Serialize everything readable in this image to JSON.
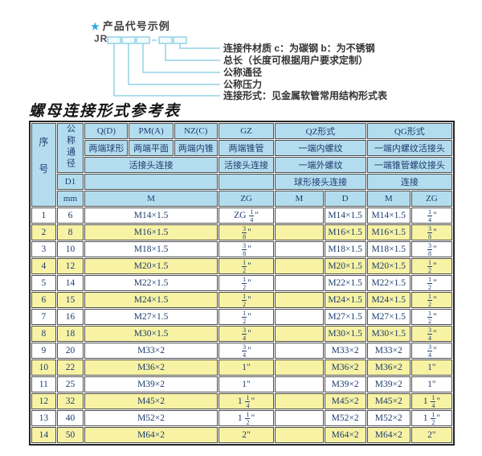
{
  "diagram": {
    "star": "★",
    "example_title": "产品代号示例",
    "code_prefix": "JR",
    "labels": [
      "连接件材质  c：为碳钢  b：为不锈钢",
      "总长（长度可根据用户要求定制）",
      "公称通径",
      "公称压力",
      "连接形式：见金属软管常用结构形式表"
    ]
  },
  "table_title": "螺母连接形式参考表",
  "table": {
    "header": {
      "seq": "序号",
      "diameter": "公称通径",
      "d1": "D1",
      "mm": "mm",
      "col_q": "Q(D)",
      "col_pm": "PM(A)",
      "col_nz": "NZ(C)",
      "col_gz": "GZ",
      "col_qz": "QZ形式",
      "col_qg": "QG形式",
      "q_desc": "两端球形",
      "pm_desc": "两端平面",
      "nz_desc": "两端内锥",
      "gz_desc": "两端锥管",
      "qz_desc1": "一端内螺纹",
      "qg_desc1": "一端内螺纹活接头",
      "union_conn": "活接头连接",
      "gz_conn": "活接头连接",
      "qz_desc2": "一端外螺纹",
      "qg_desc2": "一端锥管螺纹接头",
      "qz_conn": "球形接头连接",
      "qg_conn": "连接",
      "sub_m": "M",
      "sub_zg": "ZG",
      "sub_qz_m": "M",
      "sub_qz_d": "D",
      "sub_qg_m": "M",
      "sub_qg_zg": "ZG"
    },
    "rows": [
      {
        "seq": "1",
        "dn": "6",
        "m": "M14×1.5",
        "gz": "ZG 1/4\"",
        "qz_m": "",
        "qz_d": "M14×1.5",
        "qg_m": "M14×1.5",
        "qg_zg": "1/4\""
      },
      {
        "seq": "2",
        "dn": "8",
        "m": "M16×1.5",
        "gz": "3/8\"",
        "qz_m": "",
        "qz_d": "M16×1.5",
        "qg_m": "M16×1.5",
        "qg_zg": "3/8\""
      },
      {
        "seq": "3",
        "dn": "10",
        "m": "M18×1.5",
        "gz": "3/8\"",
        "qz_m": "",
        "qz_d": "M18×1.5",
        "qg_m": "M18×1.5",
        "qg_zg": "3/8\""
      },
      {
        "seq": "4",
        "dn": "12",
        "m": "M20×1.5",
        "gz": "1/2\"",
        "qz_m": "",
        "qz_d": "M20×1.5",
        "qg_m": "M20×1.5",
        "qg_zg": "1/2\""
      },
      {
        "seq": "5",
        "dn": "14",
        "m": "M22×1.5",
        "gz": "1/2\"",
        "qz_m": "",
        "qz_d": "M22×1.5",
        "qg_m": "M22×1.5",
        "qg_zg": "1/2\""
      },
      {
        "seq": "6",
        "dn": "15",
        "m": "M24×1.5",
        "gz": "1/2\"",
        "qz_m": "",
        "qz_d": "M24×1.5",
        "qg_m": "M24×1.5",
        "qg_zg": "1/2\""
      },
      {
        "seq": "7",
        "dn": "16",
        "m": "M27×1.5",
        "gz": "1/2\"",
        "qz_m": "",
        "qz_d": "M27×1.5",
        "qg_m": "M27×1.5",
        "qg_zg": "1/2\""
      },
      {
        "seq": "8",
        "dn": "18",
        "m": "M30×1.5",
        "gz": "3/4\"",
        "qz_m": "",
        "qz_d": "M30×1.5",
        "qg_m": "M30×1.5",
        "qg_zg": "3/4\""
      },
      {
        "seq": "9",
        "dn": "20",
        "m": "M33×2",
        "gz": "3/4\"",
        "qz_m": "",
        "qz_d": "M33×2",
        "qg_m": "M33×2",
        "qg_zg": "3/4\""
      },
      {
        "seq": "10",
        "dn": "22",
        "m": "M36×2",
        "gz": "1\"",
        "qz_m": "",
        "qz_d": "M36×2",
        "qg_m": "M36×2",
        "qg_zg": "1\""
      },
      {
        "seq": "11",
        "dn": "25",
        "m": "M39×2",
        "gz": "1\"",
        "qz_m": "",
        "qz_d": "M39×2",
        "qg_m": "M39×2",
        "qg_zg": "1\""
      },
      {
        "seq": "12",
        "dn": "32",
        "m": "M45×2",
        "gz": "1 1/4\"",
        "qz_m": "",
        "qz_d": "M45×2",
        "qg_m": "M45×2",
        "qg_zg": "1 1/4\""
      },
      {
        "seq": "13",
        "dn": "40",
        "m": "M52×2",
        "gz": "1 1/2\"",
        "qz_m": "",
        "qz_d": "M52×2",
        "qg_m": "M52×2",
        "qg_zg": "1 1/2\""
      },
      {
        "seq": "14",
        "dn": "50",
        "m": "M64×2",
        "gz": "2\"",
        "qz_m": "",
        "qz_d": "M64×2",
        "qg_m": "M64×2",
        "qg_zg": "2\""
      }
    ]
  },
  "colors": {
    "header_bg": "#b3ddef",
    "row_alt_bg": "#f8f3a4",
    "accent_star": "#2aa9e0",
    "diagram_line": "#93d2e6",
    "text_navy": "#1c3c6e",
    "border": "#4e4e4e"
  }
}
